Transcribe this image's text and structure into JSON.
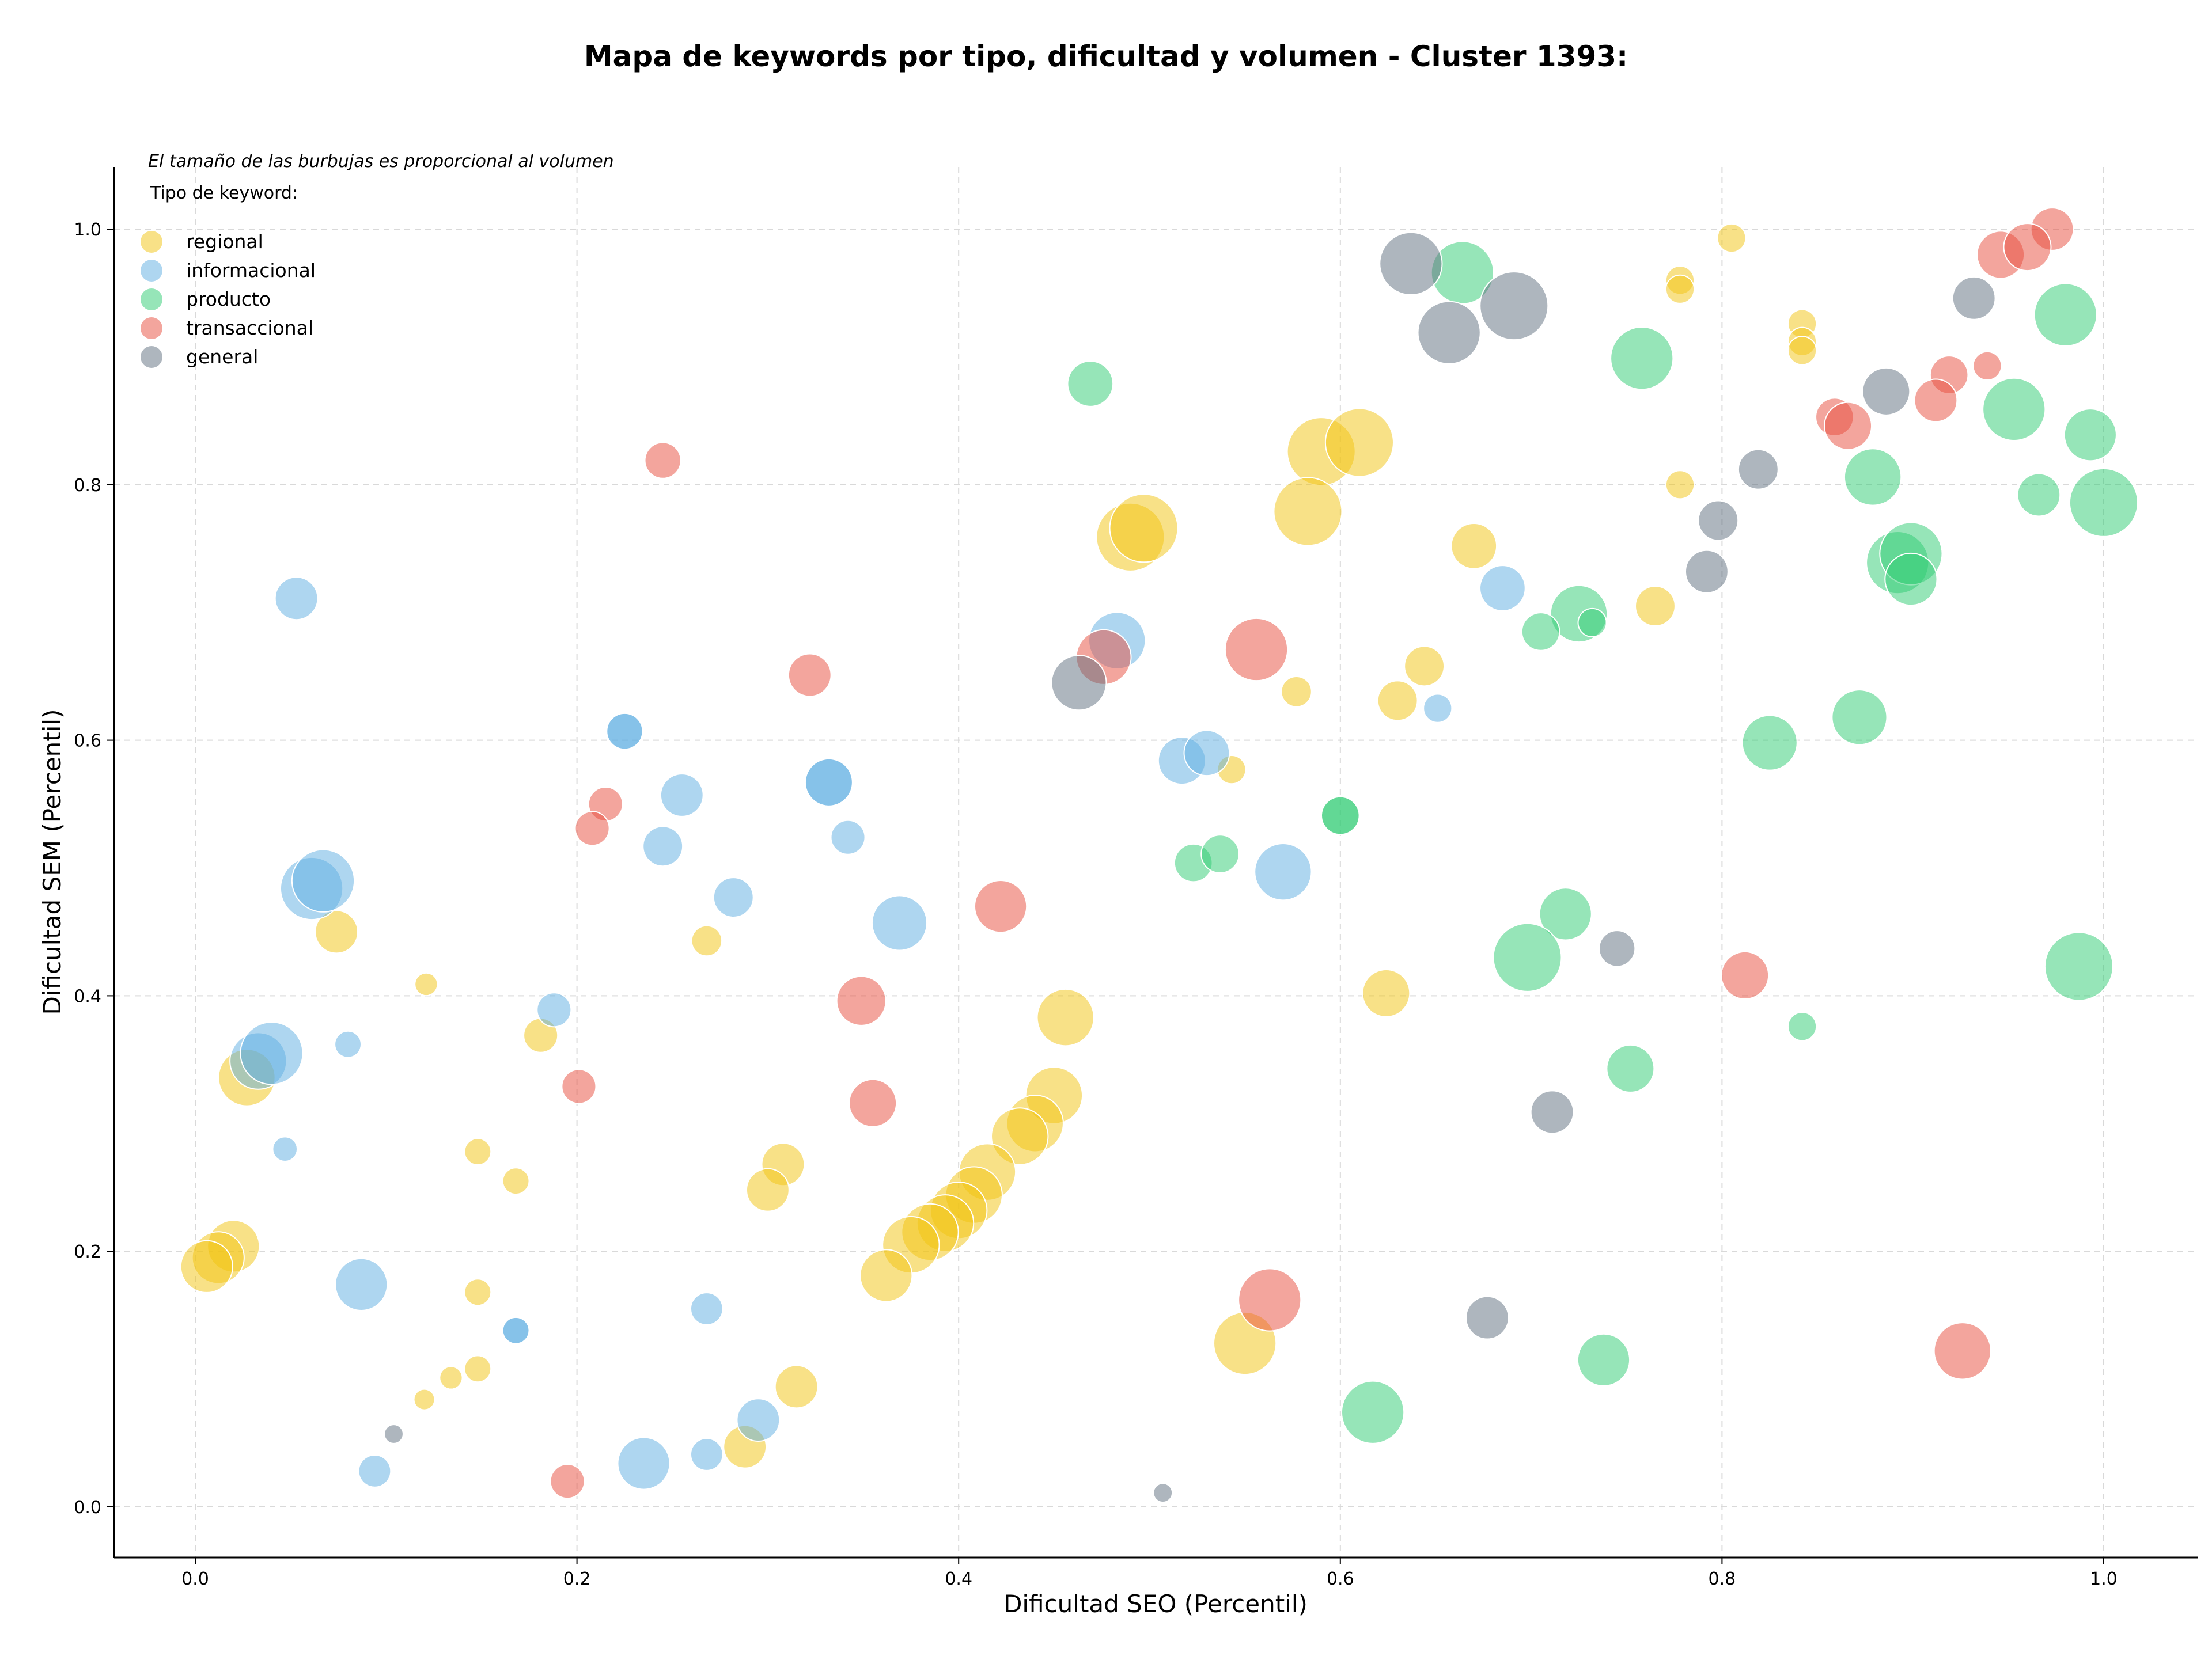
{
  "chart_data": {
    "type": "scatter",
    "title": "Mapa de keywords por tipo, dificultad y volumen - Cluster 1393:",
    "xlabel": "Dificultad SEO (Percentil)",
    "ylabel": "Dificultad SEM (Percentil)",
    "xlim": [
      -0.04,
      1.05
    ],
    "ylim": [
      -0.04,
      1.05
    ],
    "x_ticks": [
      "0.0",
      "0.2",
      "0.4",
      "0.6",
      "0.8",
      "1.0"
    ],
    "y_ticks": [
      "0.0",
      "0.2",
      "0.4",
      "0.6",
      "0.8",
      "1.0"
    ],
    "grid": true,
    "legend_position": "top-left",
    "legend_note": "El tamaño de las burbujas es proporcional al volumen",
    "legend_title": "Tipo de keyword:",
    "series": [
      {
        "name": "regional",
        "color": "#f1c40f",
        "points": [
          {
            "x": 0.805,
            "y": 0.993,
            "s": 0.3
          },
          {
            "x": 0.778,
            "y": 0.96,
            "s": 0.3
          },
          {
            "x": 0.778,
            "y": 0.953,
            "s": 0.3
          },
          {
            "x": 0.842,
            "y": 0.926,
            "s": 0.3
          },
          {
            "x": 0.842,
            "y": 0.912,
            "s": 0.3
          },
          {
            "x": 0.842,
            "y": 0.905,
            "s": 0.3
          },
          {
            "x": 0.778,
            "y": 0.8,
            "s": 0.3
          },
          {
            "x": 0.59,
            "y": 0.826,
            "s": 0.72
          },
          {
            "x": 0.61,
            "y": 0.833,
            "s": 0.72
          },
          {
            "x": 0.583,
            "y": 0.779,
            "s": 0.72
          },
          {
            "x": 0.49,
            "y": 0.759,
            "s": 0.72
          },
          {
            "x": 0.497,
            "y": 0.766,
            "s": 0.72
          },
          {
            "x": 0.67,
            "y": 0.752,
            "s": 0.48
          },
          {
            "x": 0.765,
            "y": 0.705,
            "s": 0.42
          },
          {
            "x": 0.577,
            "y": 0.638,
            "s": 0.32
          },
          {
            "x": 0.644,
            "y": 0.658,
            "s": 0.42
          },
          {
            "x": 0.63,
            "y": 0.631,
            "s": 0.42
          },
          {
            "x": 0.543,
            "y": 0.577,
            "s": 0.3
          },
          {
            "x": 0.624,
            "y": 0.402,
            "s": 0.5
          },
          {
            "x": 0.456,
            "y": 0.383,
            "s": 0.6
          },
          {
            "x": 0.074,
            "y": 0.45,
            "s": 0.45
          },
          {
            "x": 0.268,
            "y": 0.443,
            "s": 0.32
          },
          {
            "x": 0.121,
            "y": 0.409,
            "s": 0.24
          },
          {
            "x": 0.181,
            "y": 0.369,
            "s": 0.36
          },
          {
            "x": 0.027,
            "y": 0.336,
            "s": 0.6
          },
          {
            "x": 0.148,
            "y": 0.278,
            "s": 0.28
          },
          {
            "x": 0.168,
            "y": 0.255,
            "s": 0.28
          },
          {
            "x": 0.308,
            "y": 0.268,
            "s": 0.45
          },
          {
            "x": 0.3,
            "y": 0.248,
            "s": 0.45
          },
          {
            "x": 0.45,
            "y": 0.322,
            "s": 0.6
          },
          {
            "x": 0.44,
            "y": 0.3,
            "s": 0.6
          },
          {
            "x": 0.432,
            "y": 0.29,
            "s": 0.6
          },
          {
            "x": 0.415,
            "y": 0.262,
            "s": 0.6
          },
          {
            "x": 0.408,
            "y": 0.244,
            "s": 0.6
          },
          {
            "x": 0.4,
            "y": 0.232,
            "s": 0.6
          },
          {
            "x": 0.393,
            "y": 0.222,
            "s": 0.6
          },
          {
            "x": 0.385,
            "y": 0.215,
            "s": 0.6
          },
          {
            "x": 0.375,
            "y": 0.205,
            "s": 0.6
          },
          {
            "x": 0.362,
            "y": 0.181,
            "s": 0.55
          },
          {
            "x": 0.02,
            "y": 0.204,
            "s": 0.55
          },
          {
            "x": 0.012,
            "y": 0.195,
            "s": 0.55
          },
          {
            "x": 0.006,
            "y": 0.188,
            "s": 0.55
          },
          {
            "x": 0.148,
            "y": 0.168,
            "s": 0.28
          },
          {
            "x": 0.148,
            "y": 0.108,
            "s": 0.28
          },
          {
            "x": 0.134,
            "y": 0.101,
            "s": 0.24
          },
          {
            "x": 0.12,
            "y": 0.084,
            "s": 0.22
          },
          {
            "x": 0.315,
            "y": 0.094,
            "s": 0.45
          },
          {
            "x": 0.288,
            "y": 0.047,
            "s": 0.45
          },
          {
            "x": 0.55,
            "y": 0.128,
            "s": 0.66
          }
        ]
      },
      {
        "name": "informacional",
        "color": "#5dade2",
        "points": [
          {
            "x": 0.053,
            "y": 0.711,
            "s": 0.45
          },
          {
            "x": 0.483,
            "y": 0.678,
            "s": 0.6
          },
          {
            "x": 0.685,
            "y": 0.719,
            "s": 0.48
          },
          {
            "x": 0.225,
            "y": 0.607,
            "s": 0.38
          },
          {
            "x": 0.225,
            "y": 0.607,
            "s": 0.38
          },
          {
            "x": 0.332,
            "y": 0.567,
            "s": 0.5
          },
          {
            "x": 0.332,
            "y": 0.567,
            "s": 0.5
          },
          {
            "x": 0.255,
            "y": 0.557,
            "s": 0.45
          },
          {
            "x": 0.517,
            "y": 0.584,
            "s": 0.5
          },
          {
            "x": 0.53,
            "y": 0.59,
            "s": 0.48
          },
          {
            "x": 0.651,
            "y": 0.625,
            "s": 0.3
          },
          {
            "x": 0.342,
            "y": 0.524,
            "s": 0.36
          },
          {
            "x": 0.245,
            "y": 0.517,
            "s": 0.42
          },
          {
            "x": 0.282,
            "y": 0.477,
            "s": 0.42
          },
          {
            "x": 0.061,
            "y": 0.484,
            "s": 0.66
          },
          {
            "x": 0.067,
            "y": 0.49,
            "s": 0.66
          },
          {
            "x": 0.369,
            "y": 0.457,
            "s": 0.58
          },
          {
            "x": 0.57,
            "y": 0.497,
            "s": 0.6
          },
          {
            "x": 0.188,
            "y": 0.389,
            "s": 0.36
          },
          {
            "x": 0.08,
            "y": 0.362,
            "s": 0.28
          },
          {
            "x": 0.033,
            "y": 0.349,
            "s": 0.6
          },
          {
            "x": 0.04,
            "y": 0.355,
            "s": 0.66
          },
          {
            "x": 0.047,
            "y": 0.28,
            "s": 0.26
          },
          {
            "x": 0.087,
            "y": 0.174,
            "s": 0.55
          },
          {
            "x": 0.168,
            "y": 0.138,
            "s": 0.28
          },
          {
            "x": 0.168,
            "y": 0.138,
            "s": 0.28
          },
          {
            "x": 0.268,
            "y": 0.155,
            "s": 0.34
          },
          {
            "x": 0.295,
            "y": 0.068,
            "s": 0.45
          },
          {
            "x": 0.235,
            "y": 0.034,
            "s": 0.55
          },
          {
            "x": 0.268,
            "y": 0.041,
            "s": 0.34
          },
          {
            "x": 0.094,
            "y": 0.028,
            "s": 0.34
          }
        ]
      },
      {
        "name": "producto",
        "color": "#2ecc71",
        "points": [
          {
            "x": 0.664,
            "y": 0.966,
            "s": 0.66
          },
          {
            "x": 0.758,
            "y": 0.899,
            "s": 0.66
          },
          {
            "x": 0.98,
            "y": 0.933,
            "s": 0.66
          },
          {
            "x": 0.469,
            "y": 0.879,
            "s": 0.48
          },
          {
            "x": 0.953,
            "y": 0.859,
            "s": 0.66
          },
          {
            "x": 0.993,
            "y": 0.839,
            "s": 0.55
          },
          {
            "x": 0.879,
            "y": 0.806,
            "s": 0.6
          },
          {
            "x": 1.0,
            "y": 0.786,
            "s": 0.72
          },
          {
            "x": 0.966,
            "y": 0.792,
            "s": 0.45
          },
          {
            "x": 0.892,
            "y": 0.739,
            "s": 0.66
          },
          {
            "x": 0.899,
            "y": 0.746,
            "s": 0.66
          },
          {
            "x": 0.899,
            "y": 0.726,
            "s": 0.55
          },
          {
            "x": 0.725,
            "y": 0.699,
            "s": 0.6
          },
          {
            "x": 0.705,
            "y": 0.685,
            "s": 0.4
          },
          {
            "x": 0.732,
            "y": 0.692,
            "s": 0.3
          },
          {
            "x": 0.872,
            "y": 0.618,
            "s": 0.58
          },
          {
            "x": 0.825,
            "y": 0.598,
            "s": 0.58
          },
          {
            "x": 0.6,
            "y": 0.541,
            "s": 0.4
          },
          {
            "x": 0.6,
            "y": 0.541,
            "s": 0.4
          },
          {
            "x": 0.523,
            "y": 0.504,
            "s": 0.4
          },
          {
            "x": 0.537,
            "y": 0.511,
            "s": 0.4
          },
          {
            "x": 0.718,
            "y": 0.464,
            "s": 0.55
          },
          {
            "x": 0.698,
            "y": 0.43,
            "s": 0.72
          },
          {
            "x": 0.987,
            "y": 0.423,
            "s": 0.72
          },
          {
            "x": 0.842,
            "y": 0.376,
            "s": 0.3
          },
          {
            "x": 0.752,
            "y": 0.343,
            "s": 0.5
          },
          {
            "x": 0.738,
            "y": 0.115,
            "s": 0.55
          },
          {
            "x": 0.617,
            "y": 0.074,
            "s": 0.66
          }
        ]
      },
      {
        "name": "transaccional",
        "color": "#e74c3c",
        "points": [
          {
            "x": 0.973,
            "y": 1.0,
            "s": 0.45
          },
          {
            "x": 0.946,
            "y": 0.98,
            "s": 0.5
          },
          {
            "x": 0.96,
            "y": 0.986,
            "s": 0.5
          },
          {
            "x": 0.919,
            "y": 0.886,
            "s": 0.4
          },
          {
            "x": 0.939,
            "y": 0.893,
            "s": 0.3
          },
          {
            "x": 0.912,
            "y": 0.866,
            "s": 0.45
          },
          {
            "x": 0.859,
            "y": 0.853,
            "s": 0.4
          },
          {
            "x": 0.866,
            "y": 0.846,
            "s": 0.5
          },
          {
            "x": 0.245,
            "y": 0.819,
            "s": 0.38
          },
          {
            "x": 0.476,
            "y": 0.665,
            "s": 0.58
          },
          {
            "x": 0.556,
            "y": 0.671,
            "s": 0.66
          },
          {
            "x": 0.322,
            "y": 0.651,
            "s": 0.45
          },
          {
            "x": 0.215,
            "y": 0.55,
            "s": 0.36
          },
          {
            "x": 0.208,
            "y": 0.531,
            "s": 0.36
          },
          {
            "x": 0.422,
            "y": 0.47,
            "s": 0.55
          },
          {
            "x": 0.349,
            "y": 0.396,
            "s": 0.52
          },
          {
            "x": 0.812,
            "y": 0.416,
            "s": 0.5
          },
          {
            "x": 0.201,
            "y": 0.329,
            "s": 0.36
          },
          {
            "x": 0.355,
            "y": 0.316,
            "s": 0.5
          },
          {
            "x": 0.563,
            "y": 0.162,
            "s": 0.66
          },
          {
            "x": 0.926,
            "y": 0.122,
            "s": 0.6
          },
          {
            "x": 0.195,
            "y": 0.02,
            "s": 0.36
          }
        ]
      },
      {
        "name": "general",
        "color": "#5d6d7e",
        "points": [
          {
            "x": 0.637,
            "y": 0.973,
            "s": 0.66
          },
          {
            "x": 0.691,
            "y": 0.94,
            "s": 0.72
          },
          {
            "x": 0.657,
            "y": 0.919,
            "s": 0.66
          },
          {
            "x": 0.932,
            "y": 0.946,
            "s": 0.45
          },
          {
            "x": 0.886,
            "y": 0.873,
            "s": 0.5
          },
          {
            "x": 0.819,
            "y": 0.812,
            "s": 0.42
          },
          {
            "x": 0.798,
            "y": 0.772,
            "s": 0.42
          },
          {
            "x": 0.792,
            "y": 0.732,
            "s": 0.45
          },
          {
            "x": 0.463,
            "y": 0.645,
            "s": 0.58
          },
          {
            "x": 0.745,
            "y": 0.437,
            "s": 0.38
          },
          {
            "x": 0.711,
            "y": 0.309,
            "s": 0.45
          },
          {
            "x": 0.677,
            "y": 0.148,
            "s": 0.45
          },
          {
            "x": 0.104,
            "y": 0.057,
            "s": 0.2
          },
          {
            "x": 0.507,
            "y": 0.011,
            "s": 0.2
          }
        ]
      }
    ]
  }
}
